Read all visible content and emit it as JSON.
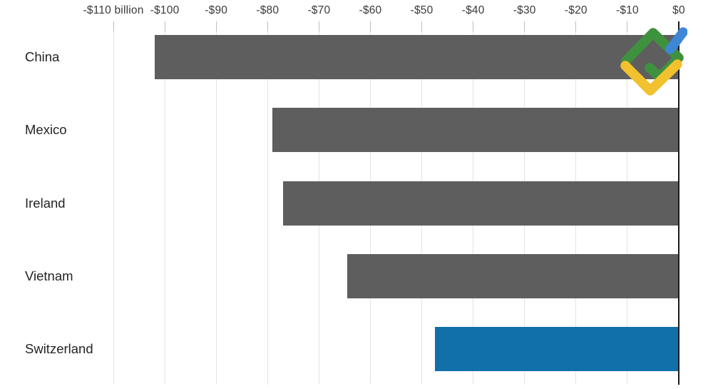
{
  "chart_data": {
    "type": "bar",
    "orientation": "horizontal",
    "title": "",
    "categories": [
      "China",
      "Mexico",
      "Ireland",
      "Vietnam",
      "Switzerland"
    ],
    "values": [
      -102,
      -79,
      -77,
      -64.5,
      -47.5
    ],
    "value_unit": "billion USD",
    "xlim": [
      -110,
      0
    ],
    "x_ticks": [
      {
        "value": -110,
        "label": "-$110 billion"
      },
      {
        "value": -100,
        "label": "-$100"
      },
      {
        "value": -90,
        "label": "-$90"
      },
      {
        "value": -80,
        "label": "-$80"
      },
      {
        "value": -70,
        "label": "-$70"
      },
      {
        "value": -60,
        "label": "-$60"
      },
      {
        "value": -50,
        "label": "-$50"
      },
      {
        "value": -40,
        "label": "-$40"
      },
      {
        "value": -30,
        "label": "-$30"
      },
      {
        "value": -20,
        "label": "-$20"
      },
      {
        "value": -10,
        "label": "-$10"
      },
      {
        "value": 0,
        "label": "$0"
      }
    ],
    "grid": true,
    "legend": "none",
    "bar_color_default": "#5e5e5e",
    "bar_color_highlight": "#1170aa",
    "highlighted_category": "Switzerland"
  },
  "watermark": {
    "name": "litefinance-logo",
    "colors": {
      "green": "#3e923e",
      "yellow": "#f2c12e",
      "blue": "#3d87d6"
    }
  }
}
